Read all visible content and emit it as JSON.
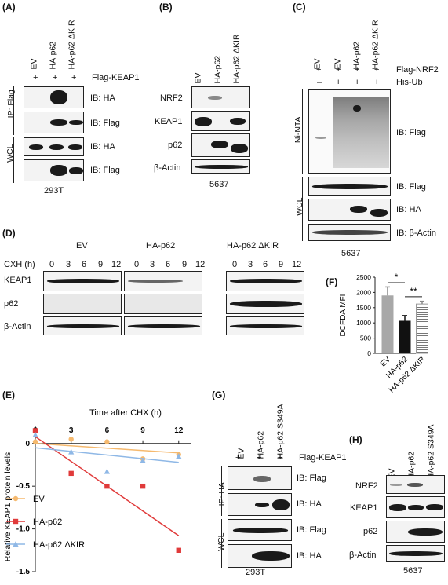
{
  "panels": {
    "A": {
      "label": "(A)",
      "lanes": [
        "EV",
        "HA-p62",
        "HA-p62 ΔKIR"
      ],
      "plus": [
        "+",
        "+",
        "+"
      ],
      "condition": "Flag-KEAP1",
      "groups": [
        "IP: Flag",
        "WCL"
      ],
      "blots": [
        "IB: HA",
        "IB: Flag",
        "IB: HA",
        "IB: Flag"
      ],
      "cell_line": "293T"
    },
    "B": {
      "label": "(B)",
      "lanes": [
        "EV",
        "HA-p62",
        "HA-p62 ΔKIR"
      ],
      "rows": [
        "NRF2",
        "KEAP1",
        "p62",
        "β-Actin"
      ],
      "cell_line": "5637"
    },
    "C": {
      "label": "(C)",
      "lanes": [
        "EV",
        "EV",
        "HA-p62",
        "HA-p62 ΔKIR"
      ],
      "row1_marks": [
        "+",
        "+",
        "+",
        "+"
      ],
      "row1_label": "Flag-NRF2",
      "row2_marks": [
        "–",
        "+",
        "+",
        "+"
      ],
      "row2_label": "His-Ub",
      "groups": [
        "Ni-NTA",
        "WCL"
      ],
      "blots": [
        "IB: Flag",
        "IB: Flag",
        "IB: HA",
        "IB: β-Actin"
      ],
      "cell_line": "5637"
    },
    "D": {
      "label": "(D)",
      "groups": [
        "EV",
        "HA-p62",
        "HA-p62 ΔKIR"
      ],
      "time_label": "CXH (h)",
      "times": [
        "0",
        "3",
        "6",
        "9",
        "12"
      ],
      "rows": [
        "KEAP1",
        "p62",
        "β-Actin"
      ]
    },
    "E": {
      "label": "(E)",
      "x_title": "Time after CHX (h)",
      "y_title": "Relative KEAP1 protein levels",
      "legend": [
        "EV",
        "HA-p62",
        "HA-p62 ΔKIR"
      ],
      "x_ticks": [
        "0",
        "3",
        "6",
        "9",
        "12"
      ],
      "y_ticks": [
        "0",
        "-0.5",
        "-1.0",
        "-1.5"
      ]
    },
    "F": {
      "label": "(F)",
      "y_title": "DCFDA MFI",
      "categories": [
        "EV",
        "HA-p62",
        "HA-p62 ΔKIR"
      ],
      "y_ticks": [
        "0",
        "500",
        "1000",
        "1500",
        "2000",
        "2500"
      ],
      "sig": [
        "*",
        "**"
      ]
    },
    "G": {
      "label": "(G)",
      "lanes": [
        "EV",
        "HA-p62",
        "HA-p62 S349A"
      ],
      "plus": [
        "+",
        "+",
        "+"
      ],
      "condition": "Flag-KEAP1",
      "groups": [
        "IP: HA",
        "WCL"
      ],
      "blots": [
        "IB: Flag",
        "IB: HA",
        "IB: Flag",
        "IB: HA"
      ],
      "cell_line": "293T"
    },
    "H": {
      "label": "(H)",
      "lanes": [
        "EV",
        "HA-p62",
        "HA-p62 S349A"
      ],
      "rows": [
        "NRF2",
        "KEAP1",
        "p62",
        "β-Actin"
      ],
      "cell_line": "5637"
    }
  },
  "chart_data": [
    {
      "type": "scatter",
      "title": "",
      "xlabel": "Time after CHX (h)",
      "ylabel": "Relative KEAP1 protein levels",
      "xlim": [
        0,
        13
      ],
      "ylim": [
        -1.5,
        0.2
      ],
      "legend_position": "bottom-left",
      "series": [
        {
          "name": "EV",
          "color": "#f5b96e",
          "marker": "circle",
          "x": [
            0,
            3,
            6,
            9,
            12
          ],
          "y": [
            0.02,
            0.05,
            0.02,
            -0.18,
            -0.13
          ],
          "fit": [
            0.0,
            -0.11
          ]
        },
        {
          "name": "HA-p62",
          "color": "#e03a3a",
          "marker": "square",
          "x": [
            0,
            3,
            6,
            9,
            12
          ],
          "y": [
            0.15,
            -0.35,
            -0.5,
            -0.5,
            -1.25
          ],
          "fit": [
            0.08,
            -1.08
          ]
        },
        {
          "name": "HA-p62 ΔKIR",
          "color": "#8fb8e6",
          "marker": "triangle",
          "x": [
            0,
            3,
            6,
            9,
            12
          ],
          "y": [
            0.1,
            -0.1,
            -0.33,
            -0.2,
            -0.15
          ],
          "fit": [
            -0.05,
            -0.22
          ]
        }
      ]
    },
    {
      "type": "bar",
      "title": "",
      "ylabel": "DCFDA MFI",
      "categories": [
        "EV",
        "HA-p62",
        "HA-p62 ΔKIR"
      ],
      "values": [
        1900,
        1070,
        1620
      ],
      "errors": [
        280,
        170,
        90
      ],
      "colors": [
        "#a8a8a8",
        "#111111",
        "hatched"
      ],
      "ylim": [
        0,
        2500
      ]
    }
  ]
}
